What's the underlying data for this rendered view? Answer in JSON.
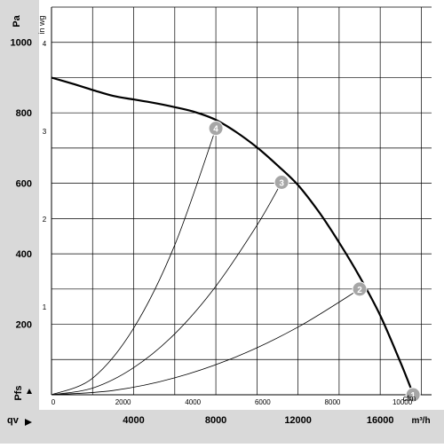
{
  "chart_data": {
    "type": "line",
    "title": "",
    "y_primary": {
      "unit": "Pa",
      "ticks": [
        "200",
        "400",
        "600",
        "800",
        "1000"
      ],
      "tick_values": [
        200,
        400,
        600,
        800,
        1000
      ],
      "range": [
        0,
        1100
      ],
      "label": "Pfs"
    },
    "y_secondary": {
      "unit": "in wg",
      "ticks": [
        "1",
        "2",
        "3",
        "4"
      ],
      "tick_values": [
        1,
        2,
        3,
        4
      ]
    },
    "x_primary": {
      "unit": "m³/h",
      "ticks": [
        "4000",
        "8000",
        "12000",
        "16000"
      ],
      "tick_values": [
        4000,
        8000,
        12000,
        16000
      ],
      "range": [
        0,
        18500
      ],
      "label": "qv"
    },
    "x_secondary": {
      "unit": "cfm",
      "ticks": [
        "0",
        "2000",
        "4000",
        "6000",
        "8000",
        "10000"
      ],
      "tick_values": [
        0,
        2000,
        4000,
        6000,
        8000,
        10000
      ]
    },
    "grid": true,
    "series": [
      {
        "name": "",
        "style": "thick",
        "x": [
          0,
          1000,
          2000,
          3000,
          4000,
          5000,
          6000,
          7000,
          8000,
          9000,
          10000,
          11000,
          12000,
          13000,
          14000,
          15000,
          16000,
          17000,
          17600
        ],
        "y": [
          900,
          883,
          865,
          848,
          838,
          828,
          816,
          802,
          780,
          745,
          702,
          651,
          595,
          520,
          432,
          335,
          225,
          90,
          2
        ]
      },
      {
        "name": "",
        "style": "thin",
        "x": [
          0,
          2000,
          4000,
          6000,
          8000
        ],
        "y": [
          0,
          47,
          189,
          425,
          756
        ]
      },
      {
        "name": "",
        "style": "thin",
        "x": [
          0,
          2000,
          4000,
          6000,
          8000,
          10000,
          11200
        ],
        "y": [
          0,
          19,
          77,
          173,
          308,
          481,
          603
        ]
      },
      {
        "name": "",
        "style": "thin",
        "x": [
          0,
          3000,
          6000,
          9000,
          12000,
          15000,
          15000
        ],
        "y": [
          0,
          12,
          48,
          108,
          192,
          300,
          300
        ]
      }
    ],
    "operating_points": [
      {
        "label": "1",
        "x": 17600,
        "y": 0
      },
      {
        "label": "2",
        "x": 15000,
        "y": 300
      },
      {
        "label": "3",
        "x": 11200,
        "y": 603
      },
      {
        "label": "4",
        "x": 8000,
        "y": 756
      }
    ],
    "colors": {
      "panel": "#d9d9d9",
      "marker_fill": "#a6a6a6",
      "curve": "#000000",
      "grid": "#000000"
    }
  }
}
